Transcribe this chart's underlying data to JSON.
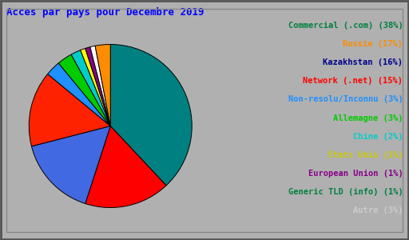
{
  "title": "Acces par pays pour Decembre 2019",
  "title_color": "#0000ff",
  "background_color": "#b0b0b0",
  "slices": [
    {
      "label": "Commercial (.com)",
      "pct": 38,
      "pie_color": "#008080",
      "text_color": "#008040"
    },
    {
      "label": "Russie",
      "pct": 17,
      "pie_color": "#ff0000",
      "text_color": "#ff8c00"
    },
    {
      "label": "Kazakhstan",
      "pct": 16,
      "pie_color": "#4169e1",
      "text_color": "#00008b"
    },
    {
      "label": "Network (.net)",
      "pct": 15,
      "pie_color": "#ff2200",
      "text_color": "#ff0000"
    },
    {
      "label": "Non-resolu/Inconnu",
      "pct": 3,
      "pie_color": "#1e90ff",
      "text_color": "#1e90ff"
    },
    {
      "label": "Allemagne",
      "pct": 3,
      "pie_color": "#00cc00",
      "text_color": "#00cc00"
    },
    {
      "label": "Chine",
      "pct": 2,
      "pie_color": "#00cccc",
      "text_color": "#00cccc"
    },
    {
      "label": "Etats Unis",
      "pct": 1,
      "pie_color": "#ffff00",
      "text_color": "#cccc00"
    },
    {
      "label": "European Union",
      "pct": 1,
      "pie_color": "#880088",
      "text_color": "#880088"
    },
    {
      "label": "Generic TLD (info)",
      "pct": 1,
      "pie_color": "#ffffff",
      "text_color": "#008040"
    },
    {
      "label": "Autre",
      "pct": 3,
      "pie_color": "#ff8c00",
      "text_color": "#cccccc"
    }
  ],
  "font_size": 7.5,
  "title_font_size": 9,
  "border_color": "#666666",
  "inner_border_color": "#888888"
}
